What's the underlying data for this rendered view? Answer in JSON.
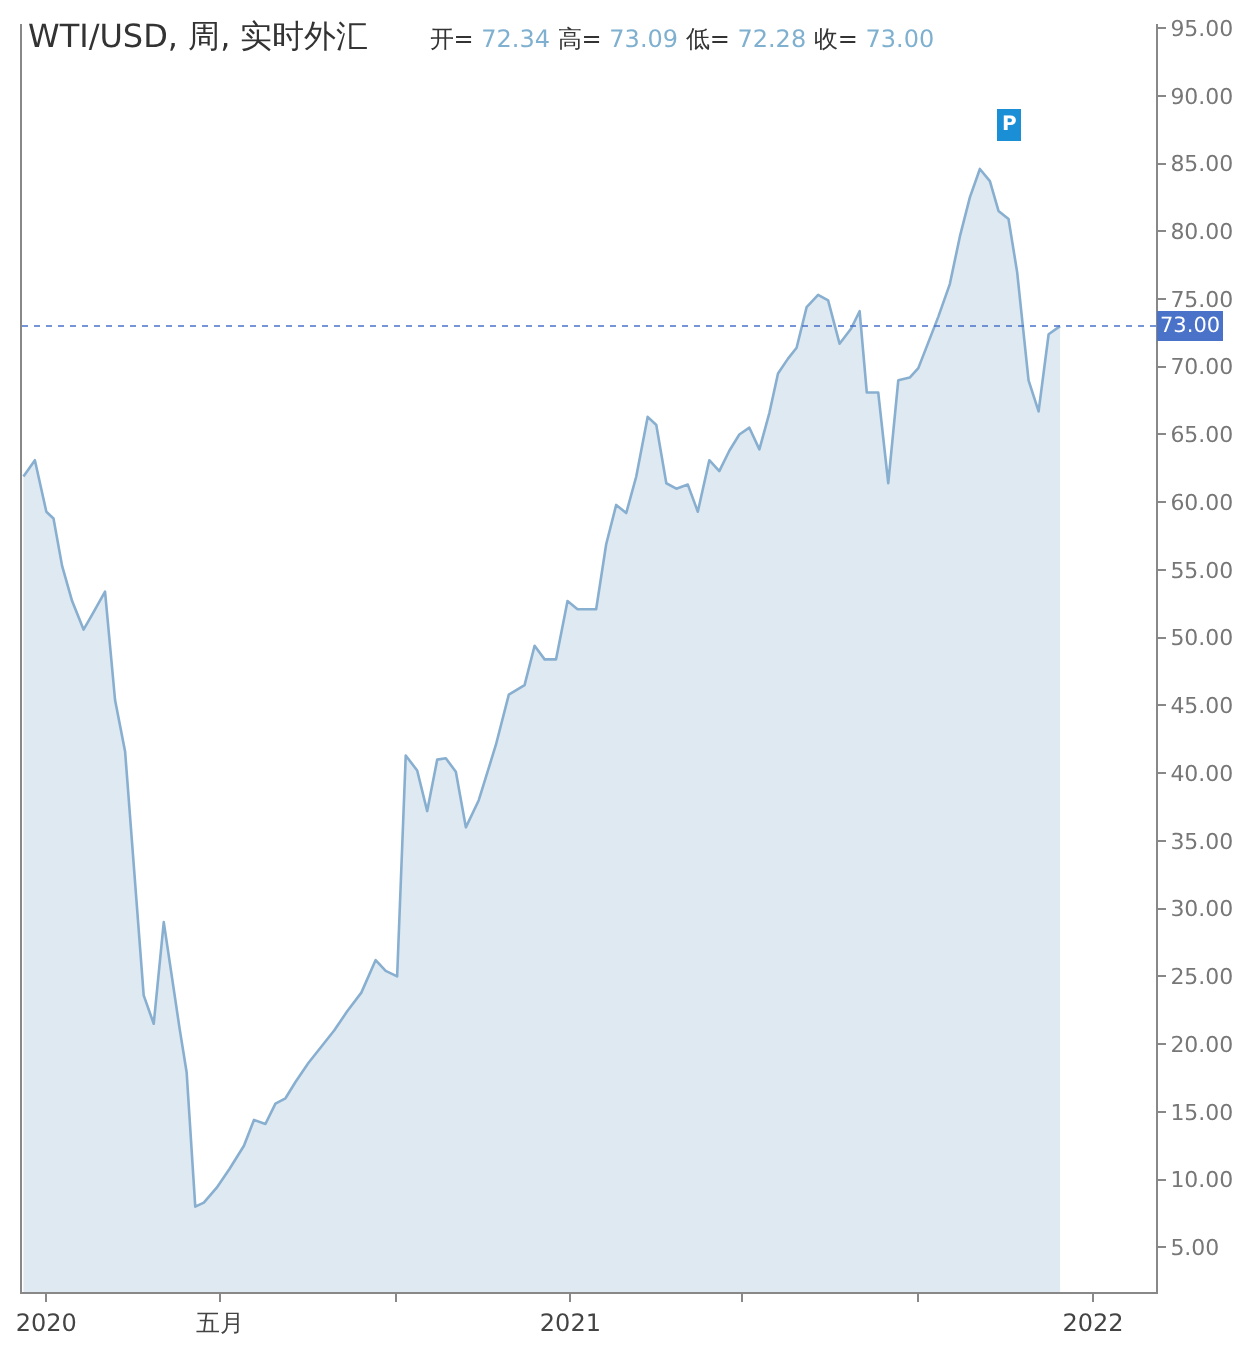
{
  "chart_data": {
    "type": "area",
    "title": "WTI/USD, 周, 实时外汇",
    "subtitle": "开= 72.34 高= 73.09 低= 72.28 收= 73.00",
    "x": [
      "2019-12-16",
      "2019-12-24",
      "2020-01-01",
      "2020-01-06",
      "2020-01-12",
      "2020-01-19",
      "2020-01-27",
      "2020-02-02",
      "2020-02-11",
      "2020-02-18",
      "2020-02-25",
      "2020-03-09",
      "2020-03-16",
      "2020-03-23",
      "2020-04-03",
      "2020-04-08",
      "2020-04-14",
      "2020-04-20",
      "2020-04-29",
      "2020-05-08",
      "2020-05-18",
      "2020-05-25",
      "2020-06-02",
      "2020-06-09",
      "2020-06-16",
      "2020-06-23",
      "2020-07-02",
      "2020-07-11",
      "2020-07-20",
      "2020-07-29",
      "2020-08-08",
      "2020-08-18",
      "2020-08-25",
      "2020-09-02",
      "2020-09-08",
      "2020-09-16",
      "2020-09-23",
      "2020-09-30",
      "2020-10-06",
      "2020-10-13",
      "2020-10-20",
      "2020-10-29",
      "2020-11-10",
      "2020-11-19",
      "2020-11-30",
      "2020-12-07",
      "2020-12-14",
      "2020-12-22",
      "2020-12-30",
      "2021-01-06",
      "2021-01-19",
      "2021-01-26",
      "2021-02-02",
      "2021-02-09",
      "2021-02-16",
      "2021-02-24",
      "2021-03-02",
      "2021-03-09",
      "2021-03-16",
      "2021-03-24",
      "2021-03-31",
      "2021-04-08",
      "2021-04-15",
      "2021-04-22",
      "2021-04-29",
      "2021-05-06",
      "2021-05-13",
      "2021-05-20",
      "2021-05-26",
      "2021-06-02",
      "2021-06-08",
      "2021-06-15",
      "2021-06-23",
      "2021-06-30",
      "2021-07-08",
      "2021-07-16",
      "2021-07-22",
      "2021-07-27",
      "2021-08-04",
      "2021-08-11",
      "2021-08-18",
      "2021-08-26",
      "2021-09-01",
      "2021-09-08",
      "2021-09-15",
      "2021-09-23",
      "2021-09-30",
      "2021-10-07",
      "2021-10-14",
      "2021-10-21",
      "2021-10-27",
      "2021-11-03",
      "2021-11-09",
      "2021-11-17",
      "2021-11-24",
      "2021-12-01",
      "2021-12-09"
    ],
    "values": [
      61.9,
      63.1,
      59.3,
      58.8,
      55.3,
      52.7,
      50.6,
      51.7,
      53.4,
      45.4,
      41.6,
      23.6,
      21.5,
      29.0,
      21.2,
      17.9,
      8.0,
      8.3,
      9.4,
      10.8,
      12.5,
      14.4,
      14.1,
      15.6,
      16.0,
      17.2,
      18.6,
      19.8,
      21.0,
      22.4,
      23.8,
      26.2,
      25.4,
      25.0,
      41.3,
      40.2,
      37.2,
      41.0,
      41.1,
      40.1,
      36.0,
      38.0,
      42.1,
      45.8,
      46.5,
      49.4,
      48.4,
      48.4,
      52.7,
      52.1,
      52.1,
      56.9,
      59.8,
      59.2,
      61.9,
      66.3,
      65.7,
      61.4,
      61.0,
      61.3,
      59.3,
      63.1,
      62.3,
      63.8,
      65.0,
      65.5,
      63.9,
      66.6,
      69.5,
      70.6,
      71.4,
      74.4,
      75.3,
      74.9,
      71.7,
      72.8,
      74.1,
      68.1,
      68.1,
      61.4,
      69.0,
      69.2,
      69.9,
      71.8,
      73.7,
      76.1,
      79.6,
      82.5,
      84.6,
      83.7,
      81.5,
      80.9,
      77.0,
      69.0,
      66.7,
      72.4,
      73.0
    ],
    "color": "#88afd0",
    "xlim": [
      "2019-12-15",
      "2022-02-14"
    ],
    "xticks": [
      {
        "value": "2020-01-01",
        "label": "2020"
      },
      {
        "value": "2020-05-01",
        "label": "五月"
      },
      {
        "value": "2020-09-01",
        "label": null
      },
      {
        "value": "2021-01-01",
        "label": "2021"
      },
      {
        "value": "2021-05-01",
        "label": null
      },
      {
        "value": "2021-09-01",
        "label": null
      },
      {
        "value": "2022-01-01",
        "label": "2022"
      }
    ],
    "ylim": [
      1.7,
      95.3
    ],
    "yticks": [
      {
        "value": 5,
        "label": "5.00"
      },
      {
        "value": 10,
        "label": "10.00"
      },
      {
        "value": 15,
        "label": "15.00"
      },
      {
        "value": 20,
        "label": "20.00"
      },
      {
        "value": 25,
        "label": "25.00"
      },
      {
        "value": 30,
        "label": "30.00"
      },
      {
        "value": 35,
        "label": "35.00"
      },
      {
        "value": 40,
        "label": "40.00"
      },
      {
        "value": 45,
        "label": "45.00"
      },
      {
        "value": 50,
        "label": "50.00"
      },
      {
        "value": 55,
        "label": "55.00"
      },
      {
        "value": 60,
        "label": "60.00"
      },
      {
        "value": 65,
        "label": "65.00"
      },
      {
        "value": 70,
        "label": "70.00"
      },
      {
        "value": 75,
        "label": "75.00"
      },
      {
        "value": 80,
        "label": "80.00"
      },
      {
        "value": 85,
        "label": "85.00"
      },
      {
        "value": 90,
        "label": "90.00"
      },
      {
        "value": 95,
        "label": "95.00"
      }
    ],
    "ref_lines": [
      {
        "axis": "y",
        "value": 73.0,
        "label": "73.00",
        "color": "#4a72c8",
        "line_style": "dotted"
      }
    ],
    "annotations": [
      {
        "text": "P",
        "x": "2021-11-04",
        "y": 87.9
      }
    ]
  }
}
